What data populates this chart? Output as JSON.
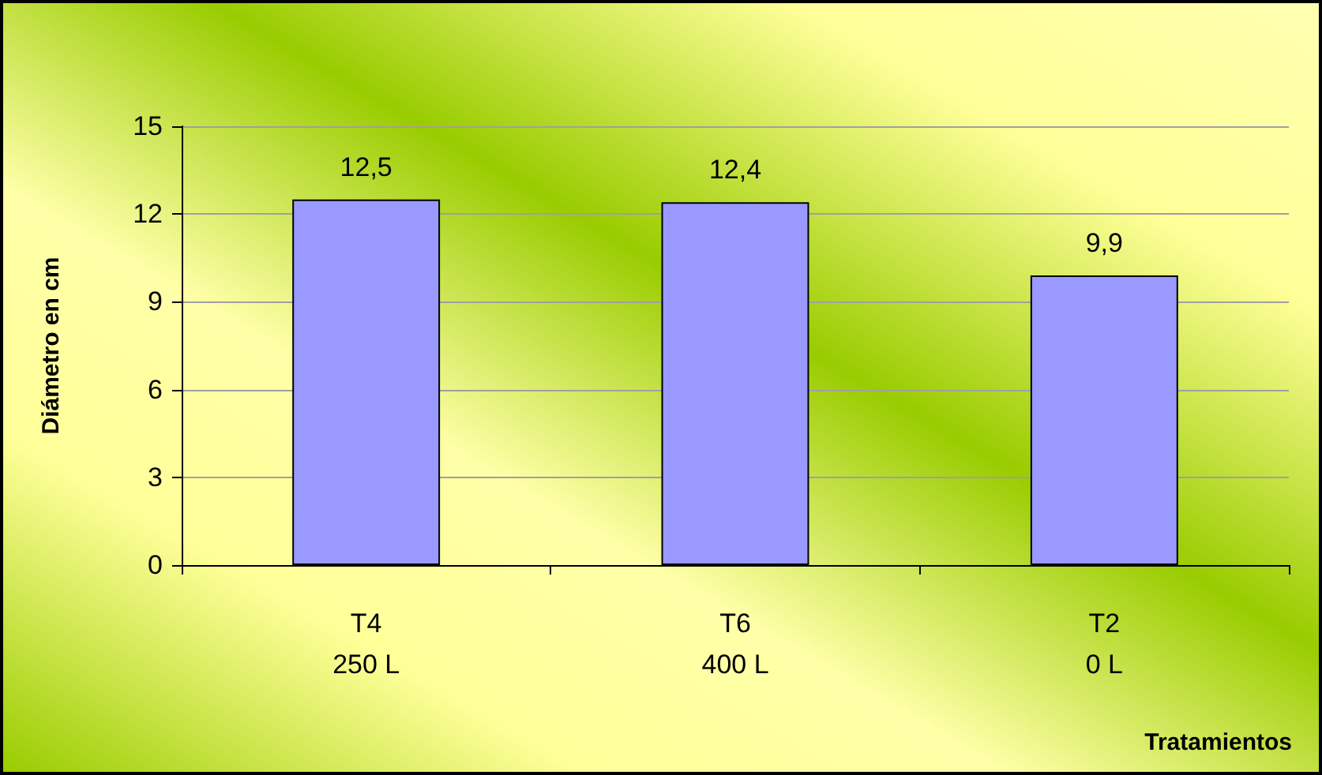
{
  "chart_data": {
    "type": "bar",
    "ylabel": "Diámetro en cm",
    "xlabel": "Tratamientos",
    "categories": [
      "T4\n250 L",
      "T6\n400 L",
      "T2\n0 L"
    ],
    "values": [
      12.5,
      12.4,
      9.9
    ],
    "value_labels": [
      "12,5",
      "12,4",
      "9,9"
    ],
    "color": "#9999ff",
    "ylim": [
      0,
      15
    ],
    "yticks": [
      0,
      3,
      6,
      9,
      12,
      15
    ],
    "grid": "y"
  }
}
